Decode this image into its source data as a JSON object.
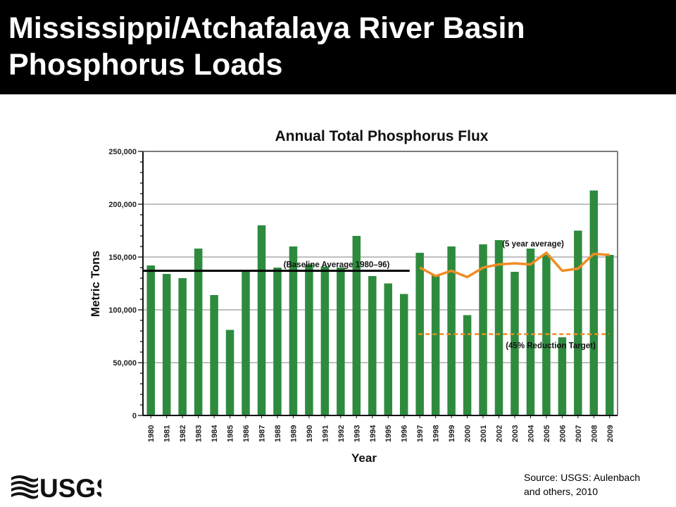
{
  "slide": {
    "title_line1": "Mississippi/Atchafalaya River Basin",
    "title_line2": "Phosphorus Loads",
    "source_line1": "Source:  USGS: Aulenbach",
    "source_line2": "and others, 2010",
    "logo_text": "USGS"
  },
  "colors": {
    "bar": "#2e8b3e",
    "five_year": "#f08c22",
    "target": "#f08c22",
    "baseline": "#000000"
  },
  "chart_data": {
    "type": "bar",
    "title": "Annual Total Phosphorus Flux",
    "xlabel": "Year",
    "ylabel": "Metric Tons",
    "ylim": [
      0,
      250000
    ],
    "yticks": [
      0,
      50000,
      100000,
      150000,
      200000,
      250000
    ],
    "ytick_labels": [
      "0",
      "50,000",
      "100,000",
      "150,000",
      "200,000",
      "250,000"
    ],
    "grid": true,
    "categories": [
      "1980",
      "1981",
      "1982",
      "1983",
      "1984",
      "1985",
      "1986",
      "1987",
      "1988",
      "1989",
      "1990",
      "1991",
      "1992",
      "1993",
      "1994",
      "1995",
      "1996",
      "1997",
      "1998",
      "1999",
      "2000",
      "2001",
      "2002",
      "2003",
      "2004",
      "2005",
      "2006",
      "2007",
      "2008",
      "2009"
    ],
    "values": [
      142000,
      134000,
      130000,
      158000,
      114000,
      81000,
      138000,
      180000,
      140000,
      160000,
      143000,
      141000,
      140000,
      170000,
      132000,
      125000,
      115000,
      154000,
      133000,
      160000,
      95000,
      162000,
      166000,
      136000,
      158000,
      152000,
      74000,
      175000,
      213000,
      152000
    ],
    "baseline": {
      "label": "(Baseline Average 1980–96)",
      "value": 137000,
      "from": "1980",
      "to": "1996"
    },
    "five_year_average": {
      "label": "(5 year average)",
      "x": [
        "1997",
        "1998",
        "1999",
        "2000",
        "2001",
        "2002",
        "2003",
        "2004",
        "2005",
        "2006",
        "2007",
        "2008",
        "2009"
      ],
      "values": [
        140000,
        132000,
        137000,
        131000,
        140000,
        143000,
        144000,
        143000,
        154000,
        137000,
        139000,
        153000,
        152000
      ]
    },
    "reduction_target": {
      "label": "(45% Reduction Target)",
      "value": 77000,
      "from": "1997",
      "to": "2009"
    }
  }
}
